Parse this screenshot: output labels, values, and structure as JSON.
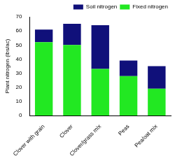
{
  "chart_data": {
    "type": "bar",
    "stacked": true,
    "grid": false,
    "legend": "upper right",
    "y_label": "Plant nitrogen (lbs/ac)",
    "categories": [
      "Clover with grain",
      "Clover",
      "Clover/grass mix",
      "Peas",
      "Pea/oat mix"
    ],
    "series": [
      {
        "name": "Fixed nitrogen",
        "color": "#22e822",
        "values": [
          52,
          50,
          33,
          28,
          19
        ]
      },
      {
        "name": "Soil nitrogen",
        "color": "#10107a",
        "values": [
          9,
          15,
          31,
          11,
          16
        ]
      }
    ],
    "ylim": [
      0,
      70
    ],
    "yticks": [
      0,
      10,
      20,
      30,
      40,
      50,
      60,
      70
    ]
  }
}
